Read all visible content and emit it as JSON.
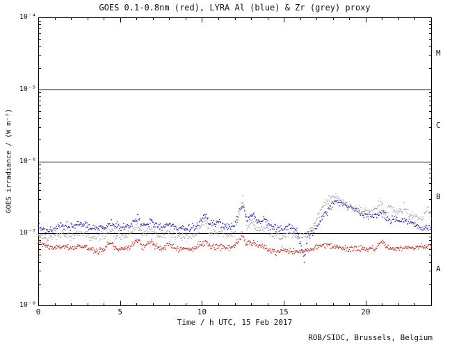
{
  "chart_data": {
    "type": "scatter",
    "title": "GOES 0.1-0.8nm (red), LYRA Al (blue) & Zr (grey) proxy",
    "xlabel": "Time / h UTC, 15 Feb 2017",
    "ylabel": "GOES irradiance / (W m⁻²)",
    "credit": "ROB/SIDC, Brussels, Belgium",
    "xlim": [
      0,
      24
    ],
    "ylim": [
      1e-08,
      0.0001
    ],
    "y_log": true,
    "grid": false,
    "x_ticks": [
      0,
      5,
      10,
      15,
      20
    ],
    "x_minor_step": 1,
    "y_tick_exponents": [
      -4,
      -5,
      -6,
      -7,
      -8
    ],
    "y_tick_labels": [
      "10⁻⁴",
      "10⁻⁵",
      "10⁻⁶",
      "10⁻⁷",
      "10⁻⁸"
    ],
    "hlines": [
      1e-05,
      1e-06,
      1e-07
    ],
    "flare_classes": [
      {
        "label": "M",
        "center": 3.16e-05
      },
      {
        "label": "C",
        "center": 3.16e-06
      },
      {
        "label": "B",
        "center": 3.16e-07
      },
      {
        "label": "A",
        "center": 3.16e-08
      }
    ],
    "colors": {
      "goes_red": "#c8281e",
      "lyra_al_blue": "#2428b4",
      "lyra_zr_grey": "#a8a8a8",
      "axis": "#000000"
    },
    "series": [
      {
        "name": "GOES 0.1-0.8nm",
        "color": "#c8281e",
        "sigma": 0.02,
        "points": [
          [
            0,
            7.5e-08
          ],
          [
            0.4,
            6.8e-08
          ],
          [
            1,
            6.2e-08
          ],
          [
            1.5,
            6.6e-08
          ],
          [
            2,
            6e-08
          ],
          [
            2.5,
            6.8e-08
          ],
          [
            3,
            6.2e-08
          ],
          [
            3.5,
            5.8e-08
          ],
          [
            4,
            6e-08
          ],
          [
            4.4,
            7.5e-08
          ],
          [
            4.7,
            6.3e-08
          ],
          [
            5,
            6e-08
          ],
          [
            5.5,
            6.5e-08
          ],
          [
            6.1,
            8e-08
          ],
          [
            6.4,
            6.5e-08
          ],
          [
            6.9,
            7.8e-08
          ],
          [
            7.2,
            6.5e-08
          ],
          [
            7.6,
            6.2e-08
          ],
          [
            8,
            7e-08
          ],
          [
            8.4,
            6.3e-08
          ],
          [
            9,
            6e-08
          ],
          [
            9.6,
            6.2e-08
          ],
          [
            10.2,
            7.8e-08
          ],
          [
            10.5,
            6.5e-08
          ],
          [
            11,
            6.8e-08
          ],
          [
            11.5,
            6.2e-08
          ],
          [
            12,
            6.5e-08
          ],
          [
            12.45,
            9.5e-08
          ],
          [
            12.7,
            7e-08
          ],
          [
            13.05,
            7.5e-08
          ],
          [
            13.4,
            6.8e-08
          ],
          [
            14,
            6e-08
          ],
          [
            14.5,
            5.6e-08
          ],
          [
            15,
            5.8e-08
          ],
          [
            15.5,
            5.5e-08
          ],
          [
            16,
            5.6e-08
          ],
          [
            16.5,
            5.8e-08
          ],
          [
            17,
            6.5e-08
          ],
          [
            17.5,
            6.8e-08
          ],
          [
            18,
            6.5e-08
          ],
          [
            18.5,
            6.2e-08
          ],
          [
            19,
            6e-08
          ],
          [
            19.5,
            6.2e-08
          ],
          [
            20,
            6e-08
          ],
          [
            20.6,
            6.2e-08
          ],
          [
            21,
            7.8e-08
          ],
          [
            21.3,
            6.3e-08
          ],
          [
            22,
            6.2e-08
          ],
          [
            22.5,
            6.5e-08
          ],
          [
            23,
            6.3e-08
          ],
          [
            23.5,
            6.6e-08
          ],
          [
            24,
            6.5e-08
          ]
        ]
      },
      {
        "name": "LYRA Al proxy",
        "color": "#2428b4",
        "sigma": 0.025,
        "points": [
          [
            0,
            1.25e-07
          ],
          [
            0.5,
            1.1e-07
          ],
          [
            1,
            1.15e-07
          ],
          [
            1.5,
            1.3e-07
          ],
          [
            2,
            1.2e-07
          ],
          [
            2.5,
            1.35e-07
          ],
          [
            3,
            1.25e-07
          ],
          [
            3.5,
            1.15e-07
          ],
          [
            4,
            1.2e-07
          ],
          [
            4.4,
            1.4e-07
          ],
          [
            5,
            1.2e-07
          ],
          [
            5.5,
            1.25e-07
          ],
          [
            6.1,
            1.6e-07
          ],
          [
            6.4,
            1.25e-07
          ],
          [
            6.9,
            1.5e-07
          ],
          [
            7.2,
            1.3e-07
          ],
          [
            7.6,
            1.2e-07
          ],
          [
            8,
            1.35e-07
          ],
          [
            8.4,
            1.2e-07
          ],
          [
            9,
            1.15e-07
          ],
          [
            9.6,
            1.2e-07
          ],
          [
            10.2,
            1.8e-07
          ],
          [
            10.5,
            1.3e-07
          ],
          [
            11,
            1.4e-07
          ],
          [
            11.5,
            1.2e-07
          ],
          [
            12,
            1.3e-07
          ],
          [
            12.5,
            2.6e-07
          ],
          [
            12.75,
            1.5e-07
          ],
          [
            13.1,
            1.9e-07
          ],
          [
            13.4,
            1.4e-07
          ],
          [
            13.8,
            1.6e-07
          ],
          [
            14.2,
            1.25e-07
          ],
          [
            14.6,
            1.2e-07
          ],
          [
            15,
            1.15e-07
          ],
          [
            15.4,
            1.3e-07
          ],
          [
            15.8,
            1.1e-07
          ],
          [
            16.1,
            6e-08
          ],
          [
            16.25,
            4e-08
          ],
          [
            16.45,
            9e-08
          ],
          [
            16.8,
            1.1e-07
          ],
          [
            17.2,
            1.4e-07
          ],
          [
            17.6,
            2e-07
          ],
          [
            18,
            2.6e-07
          ],
          [
            18.3,
            2.8e-07
          ],
          [
            18.7,
            2.5e-07
          ],
          [
            19,
            2.3e-07
          ],
          [
            19.5,
            2e-07
          ],
          [
            20,
            1.8e-07
          ],
          [
            20.5,
            1.7e-07
          ],
          [
            21,
            2e-07
          ],
          [
            21.3,
            1.6e-07
          ],
          [
            21.8,
            1.55e-07
          ],
          [
            22.3,
            1.5e-07
          ],
          [
            22.8,
            1.4e-07
          ],
          [
            23.3,
            1.25e-07
          ],
          [
            23.7,
            1.2e-07
          ],
          [
            24,
            1.15e-07
          ]
        ]
      },
      {
        "name": "LYRA Zr proxy",
        "color": "#a8a8a8",
        "sigma": 0.03,
        "points": [
          [
            0,
            1e-07
          ],
          [
            0.5,
            8.5e-08
          ],
          [
            1,
            9e-08
          ],
          [
            1.5,
            1e-07
          ],
          [
            2,
            9e-08
          ],
          [
            2.5,
            1.05e-07
          ],
          [
            3,
            9.5e-08
          ],
          [
            3.5,
            8.8e-08
          ],
          [
            4,
            9.2e-08
          ],
          [
            4.4,
            1.1e-07
          ],
          [
            5,
            9e-08
          ],
          [
            5.5,
            9.5e-08
          ],
          [
            6.1,
            1.25e-07
          ],
          [
            6.4,
            9.5e-08
          ],
          [
            6.9,
            1.15e-07
          ],
          [
            7.2,
            1e-07
          ],
          [
            7.6,
            9.2e-08
          ],
          [
            8,
            1.05e-07
          ],
          [
            8.4,
            9.2e-08
          ],
          [
            9,
            8.8e-08
          ],
          [
            9.6,
            9.2e-08
          ],
          [
            10.2,
            1.6e-07
          ],
          [
            10.5,
            1e-07
          ],
          [
            11,
            1.1e-07
          ],
          [
            11.5,
            9.5e-08
          ],
          [
            12,
            1e-07
          ],
          [
            12.5,
            3.1e-07
          ],
          [
            12.75,
            1.2e-07
          ],
          [
            13.1,
            1.5e-07
          ],
          [
            13.4,
            1.1e-07
          ],
          [
            13.8,
            1.25e-07
          ],
          [
            14.2,
            9.5e-08
          ],
          [
            14.6,
            9.2e-08
          ],
          [
            15,
            9e-08
          ],
          [
            15.4,
            1e-07
          ],
          [
            15.8,
            8.8e-08
          ],
          [
            16.2,
            9e-08
          ],
          [
            16.6,
            1.1e-07
          ],
          [
            17,
            1.6e-07
          ],
          [
            17.4,
            2.4e-07
          ],
          [
            17.8,
            3e-07
          ],
          [
            18.1,
            3.2e-07
          ],
          [
            18.5,
            2.9e-07
          ],
          [
            19,
            2.5e-07
          ],
          [
            19.5,
            2.2e-07
          ],
          [
            20,
            2e-07
          ],
          [
            20.4,
            1.9e-07
          ],
          [
            20.9,
            2.8e-07
          ],
          [
            21.15,
            2e-07
          ],
          [
            21.5,
            2.5e-07
          ],
          [
            21.8,
            1.9e-07
          ],
          [
            22.4,
            2.2e-07
          ],
          [
            22.7,
            1.8e-07
          ],
          [
            23,
            1.7e-07
          ],
          [
            23.4,
            1.6e-07
          ],
          [
            23.8,
            2.1e-07
          ],
          [
            24,
            1.6e-07
          ]
        ]
      }
    ]
  }
}
